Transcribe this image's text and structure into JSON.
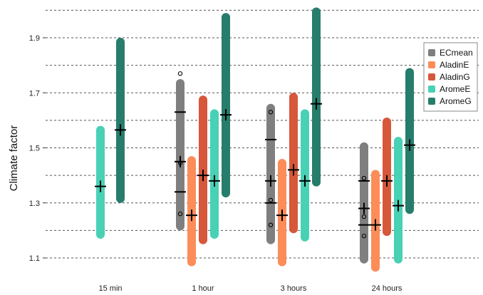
{
  "chart_data": {
    "type": "box",
    "ylabel": "Climate factor",
    "ylim": [
      1.05,
      2.05
    ],
    "yticks": [
      {
        "value": 1.1,
        "label": "1.1"
      },
      {
        "value": 1.3,
        "label": "1.3"
      },
      {
        "value": 1.5,
        "label": "1.5"
      },
      {
        "value": 1.7,
        "label": "1.7"
      },
      {
        "value": 1.9,
        "label": "1.9"
      }
    ],
    "gridlines": [
      1.1,
      1.2,
      1.3,
      1.4,
      1.5,
      1.6,
      1.7,
      1.8,
      1.9,
      2.0
    ],
    "grid_style": "dashed horizontal",
    "legend_position": "top-right",
    "categories": [
      "15 min",
      "1 hour",
      "3 hours",
      "24 hours"
    ],
    "series": [
      {
        "name": "ECmean",
        "color": "#7f7f7f"
      },
      {
        "name": "AladinE",
        "color": "#fc8d59"
      },
      {
        "name": "AladinG",
        "color": "#d7573a"
      },
      {
        "name": "AromeE",
        "color": "#48d1b5"
      },
      {
        "name": "AromeG",
        "color": "#277d6b"
      }
    ],
    "boxes": [
      {
        "category": 0,
        "series": "AromeE",
        "low": 1.17,
        "high": 1.58,
        "mean": 1.36
      },
      {
        "category": 0,
        "series": "AromeG",
        "low": 1.3,
        "high": 1.9,
        "mean": 1.565
      },
      {
        "category": 1,
        "series": "ECmean",
        "low": 1.2,
        "high": 1.75,
        "mean": 1.45,
        "lines": [
          1.63,
          1.34
        ],
        "outliers": [
          1.77,
          1.445,
          1.26
        ]
      },
      {
        "category": 1,
        "series": "AladinE",
        "low": 1.07,
        "high": 1.47,
        "mean": 1.255
      },
      {
        "category": 1,
        "series": "AladinG",
        "low": 1.15,
        "high": 1.69,
        "mean": 1.4
      },
      {
        "category": 1,
        "series": "AromeE",
        "low": 1.17,
        "high": 1.64,
        "mean": 1.38
      },
      {
        "category": 1,
        "series": "AromeG",
        "low": 1.32,
        "high": 1.99,
        "mean": 1.62
      },
      {
        "category": 2,
        "series": "ECmean",
        "low": 1.15,
        "high": 1.66,
        "mean": 1.38,
        "lines": [
          1.53,
          1.3
        ],
        "outliers": [
          1.63,
          1.31,
          1.22
        ]
      },
      {
        "category": 2,
        "series": "AladinE",
        "low": 1.07,
        "high": 1.46,
        "mean": 1.255
      },
      {
        "category": 2,
        "series": "AladinG",
        "low": 1.19,
        "high": 1.7,
        "mean": 1.42
      },
      {
        "category": 2,
        "series": "AromeE",
        "low": 1.16,
        "high": 1.64,
        "mean": 1.38
      },
      {
        "category": 2,
        "series": "AromeG",
        "low": 1.36,
        "high": 2.01,
        "mean": 1.66
      },
      {
        "category": 3,
        "series": "ECmean",
        "low": 1.08,
        "high": 1.52,
        "mean": 1.28,
        "lines": [
          1.38,
          1.22
        ],
        "outliers": [
          1.39,
          1.25,
          1.18
        ]
      },
      {
        "category": 3,
        "series": "AladinE",
        "low": 1.05,
        "high": 1.42,
        "mean": 1.22
      },
      {
        "category": 3,
        "series": "AladinG",
        "low": 1.18,
        "high": 1.61,
        "mean": 1.38
      },
      {
        "category": 3,
        "series": "AromeE",
        "low": 1.08,
        "high": 1.54,
        "mean": 1.29
      },
      {
        "category": 3,
        "series": "AromeG",
        "low": 1.26,
        "high": 1.79,
        "mean": 1.51
      }
    ]
  }
}
